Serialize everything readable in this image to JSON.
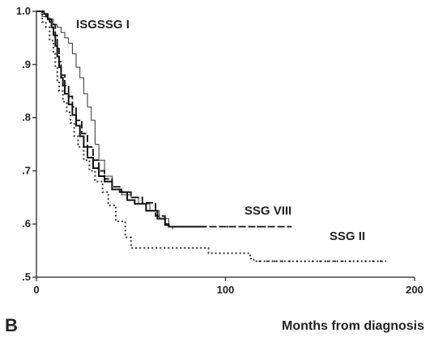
{
  "panel_label": "B",
  "chart_data": {
    "type": "line",
    "title": "",
    "xlabel": "Months from diagnosis",
    "ylabel": "",
    "xlim": [
      0,
      200
    ],
    "ylim": [
      0.5,
      1.0
    ],
    "x_ticks": [
      0,
      100,
      200
    ],
    "x_tick_labels": [
      "0",
      "100",
      "200"
    ],
    "y_ticks": [
      0.5,
      0.6,
      0.7,
      0.8,
      0.9,
      1.0
    ],
    "y_tick_labels": [
      ".5",
      ".6",
      ".7",
      ".8",
      ".9",
      "1.0"
    ],
    "grid": false,
    "legend": "none",
    "series": [
      {
        "name": "ISGSSG I",
        "style": "thin",
        "points": [
          [
            0,
            1.0
          ],
          [
            3,
            0.99
          ],
          [
            6,
            0.985
          ],
          [
            9,
            0.975
          ],
          [
            11,
            0.97
          ],
          [
            13,
            0.96
          ],
          [
            15,
            0.95
          ],
          [
            17,
            0.94
          ],
          [
            19,
            0.92
          ],
          [
            21,
            0.895
          ],
          [
            23,
            0.875
          ],
          [
            25,
            0.845
          ],
          [
            27,
            0.82
          ],
          [
            29,
            0.795
          ],
          [
            31,
            0.75
          ],
          [
            33,
            0.72
          ],
          [
            36,
            0.69
          ],
          [
            40,
            0.665
          ],
          [
            45,
            0.655
          ],
          [
            50,
            0.65
          ],
          [
            54,
            0.638
          ],
          [
            60,
            0.625
          ],
          [
            65,
            0.61
          ],
          [
            70,
            0.595
          ],
          [
            72,
            0.59
          ]
        ]
      },
      {
        "name": "SSG VIII",
        "style": "thick-dashed",
        "points": [
          [
            0,
            1.0
          ],
          [
            3,
            0.995
          ],
          [
            5,
            0.99
          ],
          [
            7,
            0.98
          ],
          [
            9,
            0.975
          ],
          [
            10,
            0.955
          ],
          [
            11,
            0.93
          ],
          [
            12,
            0.905
          ],
          [
            13,
            0.88
          ],
          [
            15,
            0.86
          ],
          [
            17,
            0.84
          ],
          [
            19,
            0.82
          ],
          [
            21,
            0.795
          ],
          [
            24,
            0.77
          ],
          [
            27,
            0.745
          ],
          [
            30,
            0.72
          ],
          [
            33,
            0.7
          ],
          [
            36,
            0.685
          ],
          [
            40,
            0.67
          ],
          [
            44,
            0.66
          ],
          [
            50,
            0.65
          ],
          [
            56,
            0.64
          ],
          [
            63,
            0.615
          ],
          [
            68,
            0.6
          ],
          [
            70,
            0.595
          ],
          [
            135,
            0.595
          ]
        ]
      },
      {
        "name": "SSG II",
        "style": "dotted",
        "points": [
          [
            0,
            1.0
          ],
          [
            3,
            0.98
          ],
          [
            5,
            0.97
          ],
          [
            7,
            0.945
          ],
          [
            9,
            0.92
          ],
          [
            10,
            0.895
          ],
          [
            11,
            0.87
          ],
          [
            12,
            0.85
          ],
          [
            14,
            0.83
          ],
          [
            16,
            0.81
          ],
          [
            18,
            0.79
          ],
          [
            20,
            0.765
          ],
          [
            22,
            0.745
          ],
          [
            25,
            0.72
          ],
          [
            28,
            0.7
          ],
          [
            31,
            0.68
          ],
          [
            35,
            0.66
          ],
          [
            38,
            0.635
          ],
          [
            42,
            0.605
          ],
          [
            47,
            0.575
          ],
          [
            50,
            0.555
          ],
          [
            88,
            0.555
          ],
          [
            91,
            0.545
          ],
          [
            105,
            0.545
          ],
          [
            113,
            0.535
          ],
          [
            115,
            0.53
          ],
          [
            185,
            0.53
          ]
        ]
      },
      {
        "name": "",
        "style": "step",
        "points": [
          [
            0,
            1.0
          ],
          [
            4,
            0.995
          ],
          [
            6,
            0.985
          ],
          [
            8,
            0.97
          ],
          [
            9,
            0.955
          ],
          [
            10,
            0.935
          ],
          [
            11,
            0.915
          ],
          [
            12,
            0.895
          ],
          [
            13,
            0.875
          ],
          [
            14,
            0.86
          ],
          [
            15,
            0.845
          ],
          [
            17,
            0.825
          ],
          [
            19,
            0.805
          ],
          [
            21,
            0.785
          ],
          [
            23,
            0.765
          ],
          [
            25,
            0.745
          ],
          [
            27,
            0.725
          ],
          [
            30,
            0.705
          ],
          [
            33,
            0.69
          ],
          [
            36,
            0.68
          ],
          [
            40,
            0.665
          ],
          [
            45,
            0.66
          ],
          [
            48,
            0.645
          ],
          [
            52,
            0.638
          ],
          [
            58,
            0.625
          ],
          [
            64,
            0.61
          ],
          [
            68,
            0.598
          ],
          [
            70,
            0.595
          ],
          [
            90,
            0.595
          ]
        ]
      }
    ],
    "annotations": [
      {
        "text": "ISGSSG I",
        "x": 21,
        "y": 0.968
      },
      {
        "text": "SSG VIII",
        "x": 110,
        "y": 0.618
      },
      {
        "text": "SSG II",
        "x": 155,
        "y": 0.57
      }
    ]
  }
}
